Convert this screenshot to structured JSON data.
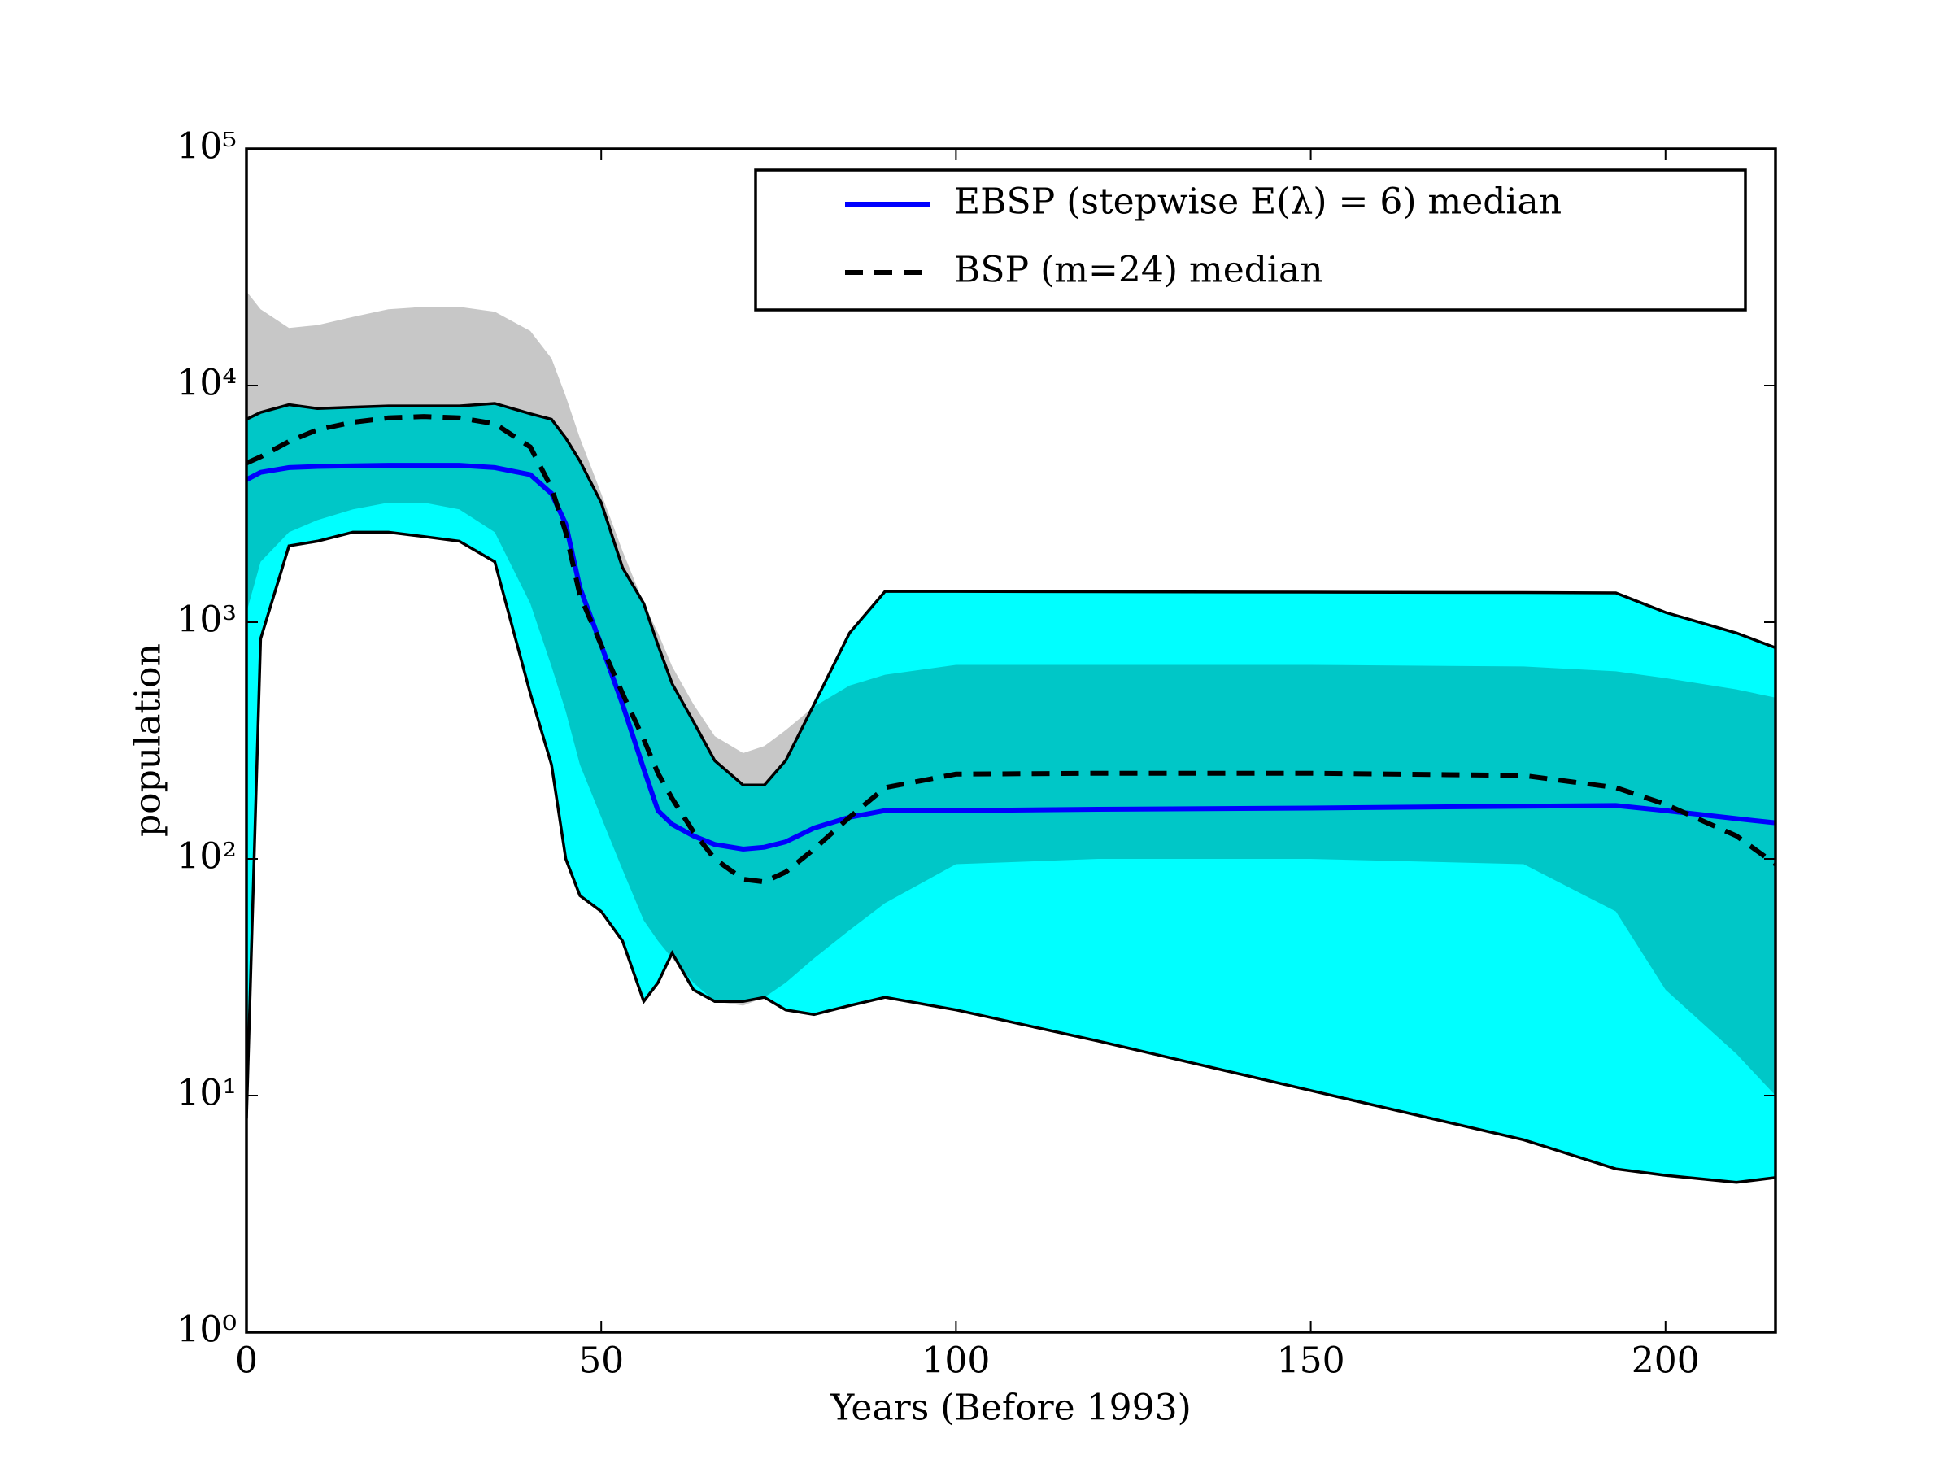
{
  "chart_data": {
    "type": "line",
    "xlabel": "Years (Before 1993)",
    "ylabel": "population",
    "x": [
      0,
      2,
      6,
      10,
      15,
      20,
      25,
      30,
      35,
      40,
      43,
      45,
      47,
      50,
      53,
      56,
      58,
      60,
      63,
      66,
      70,
      73,
      76,
      80,
      85,
      90,
      100,
      120,
      150,
      180,
      193,
      200,
      210,
      215.5
    ],
    "series": [
      {
        "name": "EBSP (stepwise E(λ) = 6) median",
        "color": "#0000ff",
        "dash": false,
        "values": [
          4000,
          4300,
          4500,
          4550,
          4580,
          4600,
          4600,
          4600,
          4500,
          4200,
          3500,
          2600,
          1400,
          800,
          450,
          240,
          160,
          140,
          125,
          115,
          110,
          112,
          118,
          135,
          150,
          160,
          160,
          162,
          164,
          167,
          168,
          160,
          148,
          142
        ]
      },
      {
        "name": "BSP (m=24) median",
        "color": "#000000",
        "dash": true,
        "values": [
          4700,
          5000,
          5800,
          6500,
          7000,
          7300,
          7400,
          7300,
          6900,
          5500,
          3700,
          2400,
          1300,
          800,
          500,
          320,
          230,
          180,
          130,
          100,
          82,
          80,
          88,
          110,
          150,
          200,
          228,
          230,
          230,
          225,
          200,
          170,
          125,
          95
        ]
      }
    ],
    "bands": [
      {
        "color": "#00ffff",
        "outline": true,
        "upper": [
          7200,
          7700,
          8300,
          8000,
          8100,
          8200,
          8200,
          8200,
          8400,
          7600,
          7200,
          6000,
          4800,
          3200,
          1700,
          1200,
          800,
          550,
          380,
          260,
          205,
          205,
          260,
          450,
          900,
          1350,
          1350,
          1345,
          1340,
          1335,
          1330,
          1100,
          900,
          780
        ],
        "lower": [
          8,
          850,
          2100,
          2200,
          2400,
          2400,
          2300,
          2200,
          1800,
          500,
          250,
          100,
          70,
          60,
          45,
          25,
          30,
          40,
          28,
          25,
          25,
          26,
          23,
          22,
          24,
          26,
          23,
          17,
          10.5,
          6.5,
          4.9,
          4.6,
          4.3,
          4.5
        ]
      },
      {
        "color": "#000000",
        "outline": false,
        "upper": [
          25000,
          21000,
          17500,
          18000,
          19500,
          21000,
          21500,
          21500,
          20500,
          17000,
          13000,
          9000,
          6000,
          3500,
          2000,
          1200,
          900,
          650,
          450,
          330,
          280,
          300,
          350,
          440,
          540,
          600,
          660,
          660,
          660,
          650,
          620,
          580,
          520,
          480
        ],
        "lower": [
          1100,
          1800,
          2400,
          2700,
          3000,
          3200,
          3200,
          3000,
          2400,
          1200,
          650,
          420,
          250,
          150,
          90,
          55,
          45,
          38,
          30,
          25,
          24,
          26,
          30,
          38,
          50,
          65,
          95,
          100,
          100,
          95,
          60,
          28,
          15,
          10
        ]
      }
    ],
    "xlim": [
      0,
      215.5
    ],
    "xticks": [
      0,
      50,
      100,
      150,
      200
    ],
    "ylim": [
      1,
      100000
    ],
    "log_y": true,
    "yticks": [
      {
        "value": 1,
        "label": "10⁰"
      },
      {
        "value": 10,
        "label": "10¹"
      },
      {
        "value": 100,
        "label": "10²"
      },
      {
        "value": 1000,
        "label": "10³"
      },
      {
        "value": 10000,
        "label": "10⁴"
      },
      {
        "value": 100000,
        "label": "10⁵"
      }
    ],
    "legend": "upper right"
  }
}
